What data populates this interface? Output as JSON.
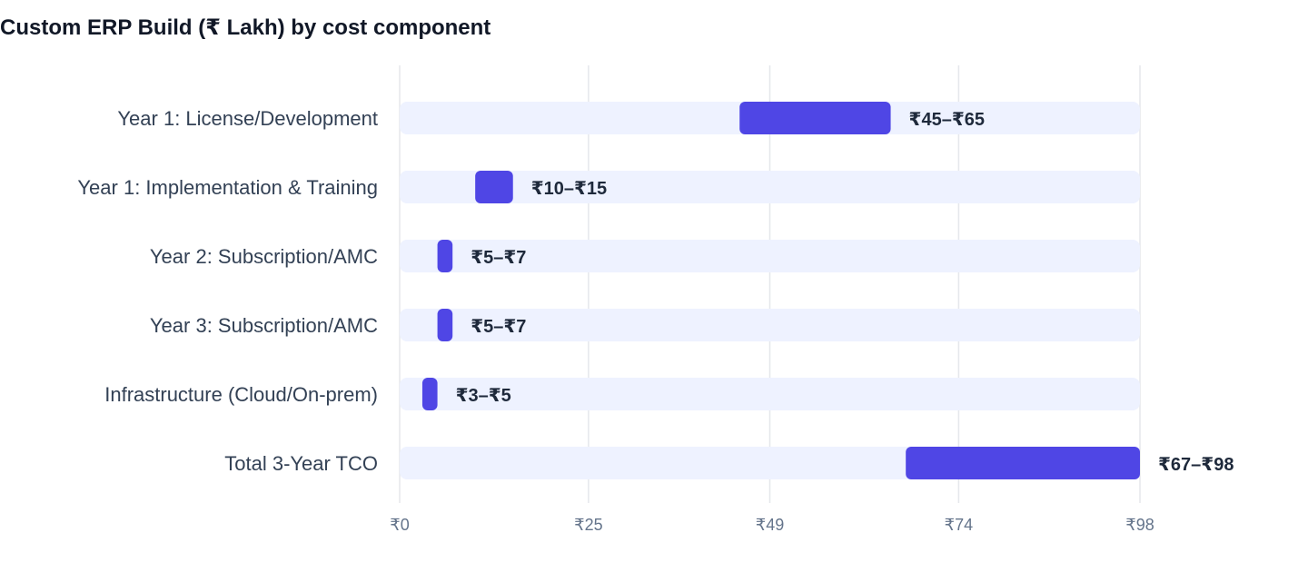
{
  "chart_data": {
    "type": "bar",
    "subtype": "range-bar",
    "orientation": "horizontal",
    "title": "Custom ERP Build (₹ Lakh) by cost component",
    "categories": [
      "Year 1: License/Development",
      "Year 1: Implementation & Training",
      "Year 2: Subscription/AMC",
      "Year 3: Subscription/AMC",
      "Infrastructure (Cloud/On-prem)",
      "Total 3-Year TCO"
    ],
    "series": [
      {
        "ranges": [
          [
            45,
            65
          ],
          [
            10,
            15
          ],
          [
            5,
            7
          ],
          [
            5,
            7
          ],
          [
            3,
            5
          ],
          [
            67,
            98
          ]
        ],
        "labels": [
          "₹45–₹65",
          "₹10–₹15",
          "₹5–₹7",
          "₹5–₹7",
          "₹3–₹5",
          "₹67–₹98"
        ]
      }
    ],
    "xlim": [
      0,
      98
    ],
    "xticks": [
      0,
      25,
      49,
      74,
      98
    ],
    "xtick_labels": [
      "₹0",
      "₹25",
      "₹49",
      "₹74",
      "₹98"
    ],
    "xlabel": "",
    "ylabel": "",
    "grid": true,
    "legend": "none",
    "colors": {
      "bar": "#4f46e5",
      "track": "#eef2ff",
      "grid": "#e5e7eb",
      "category_label": "#334155",
      "value_label": "#1e293b",
      "tick_label": "#64748b"
    }
  }
}
